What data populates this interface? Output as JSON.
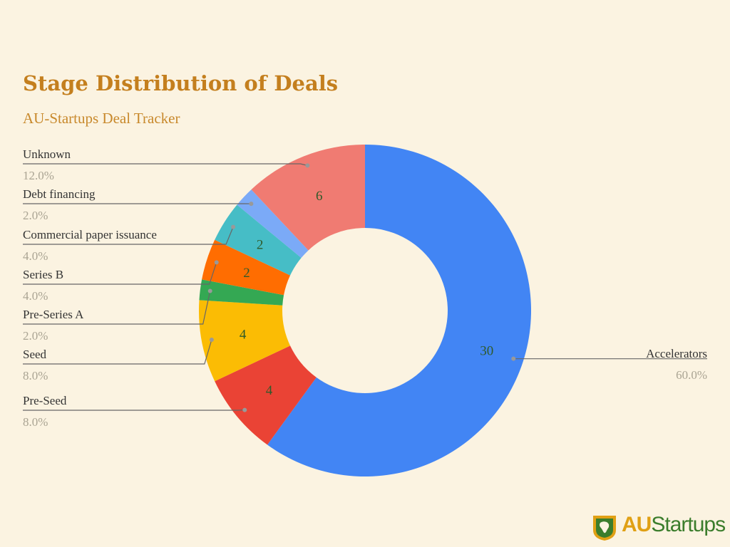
{
  "chart_data": {
    "type": "pie",
    "variant": "donut",
    "title": "Stage Distribution of Deals",
    "subtitle": "AU-Startups Deal Tracker",
    "slices": [
      {
        "label": "Accelerators",
        "value": 30,
        "percent": "60.0%",
        "color": "#4285f4"
      },
      {
        "label": "Pre-Seed",
        "value": 4,
        "percent": "8.0%",
        "color": "#ea4335"
      },
      {
        "label": "Seed",
        "value": 4,
        "percent": "8.0%",
        "color": "#fbbc04"
      },
      {
        "label": "Pre-Series A",
        "value": 1,
        "percent": "2.0%",
        "color": "#34a853"
      },
      {
        "label": "Series B",
        "value": 2,
        "percent": "4.0%",
        "color": "#ff6d01"
      },
      {
        "label": "Commercial paper issuance",
        "value": 2,
        "percent": "4.0%",
        "color": "#46bdc6"
      },
      {
        "label": "Debt financing",
        "value": 1,
        "percent": "2.0%",
        "color": "#7baaf7"
      },
      {
        "label": "Unknown",
        "value": 6,
        "percent": "12.0%",
        "color": "#f07b72"
      }
    ],
    "value_labels_shown": [
      "Accelerators",
      "Pre-Seed",
      "Seed",
      "Series B",
      "Commercial paper issuance",
      "Unknown"
    ]
  },
  "logo": {
    "prefix": "AU",
    "suffix": "Startups"
  },
  "colors": {
    "background": "#fbf3e1",
    "title": "#c47f1e"
  }
}
